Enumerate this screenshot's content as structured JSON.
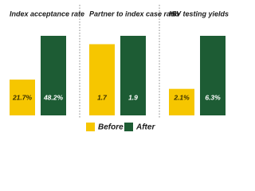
{
  "legend": [
    {
      "name": "Before",
      "color": "#f6c600"
    },
    {
      "name": "After",
      "color": "#1d5c34"
    }
  ],
  "chart_data": [
    {
      "type": "bar",
      "title": "Index acceptance rate",
      "values": [
        21.7,
        48.2
      ],
      "value_labels": [
        "21.7%",
        "48.2%"
      ]
    },
    {
      "type": "bar",
      "title": "Partner to index case ratio",
      "values": [
        1.7,
        1.9
      ]
    },
    {
      "type": "bar",
      "title": "HIV testing yields",
      "values": [
        2.1,
        6.3
      ],
      "value_labels": [
        "2.1%",
        "6.3%"
      ]
    }
  ]
}
